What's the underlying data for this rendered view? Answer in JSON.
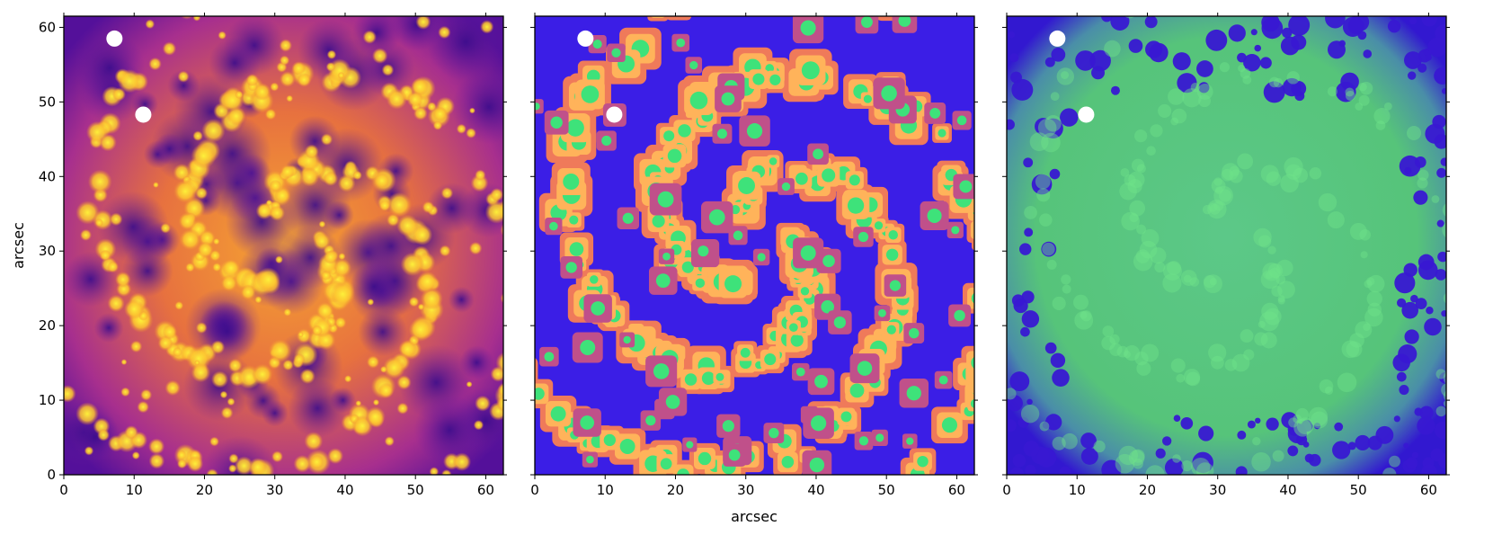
{
  "chart_data": [
    {
      "type": "heatmap",
      "panel": "left",
      "colormap": "plasma",
      "xlim": [
        0,
        62.5
      ],
      "ylim": [
        0,
        61.5
      ],
      "xticks": [
        0,
        10,
        20,
        30,
        40,
        50,
        60
      ],
      "yticks": [
        0,
        10,
        20,
        30,
        40,
        50,
        60
      ],
      "xlabel": "",
      "ylabel": "arcsec",
      "masked_points": [
        {
          "x": 7.2,
          "y": 58.5
        },
        {
          "x": 11.3,
          "y": 48.3
        }
      ],
      "description_value_range": "dark purple (low) to bright yellow (high)"
    },
    {
      "type": "heatmap",
      "panel": "middle",
      "colormap": "segmentation",
      "xlim": [
        0,
        62.5
      ],
      "ylim": [
        0,
        61.5
      ],
      "xticks": [
        0,
        10,
        20,
        30,
        40,
        50,
        60
      ],
      "yticks": [],
      "xlabel": "arcsec",
      "ylabel": "",
      "masked_points": [
        {
          "x": 7.2,
          "y": 58.5
        },
        {
          "x": 11.3,
          "y": 48.3
        }
      ]
    },
    {
      "type": "heatmap",
      "panel": "right",
      "colormap": "blue-green mask",
      "xlim": [
        0,
        62.5
      ],
      "ylim": [
        0,
        61.5
      ],
      "xticks": [
        0,
        10,
        20,
        30,
        40,
        50,
        60
      ],
      "yticks": [],
      "xlabel": "",
      "ylabel": "",
      "masked_points": [
        {
          "x": 7.2,
          "y": 58.5
        },
        {
          "x": 11.3,
          "y": 48.3
        }
      ]
    }
  ],
  "colors": {
    "plasma_low": "#3a0c8c",
    "plasma_mid": "#d24a7a",
    "plasma_high": "#fde33a",
    "seg_background": "#3b1ee6",
    "seg_ring": "#ef7a5a",
    "seg_inner": "#ffb35a",
    "seg_core": "#3ee27a",
    "mask_blue": "#3818d2",
    "mask_green": "#4fc872"
  }
}
